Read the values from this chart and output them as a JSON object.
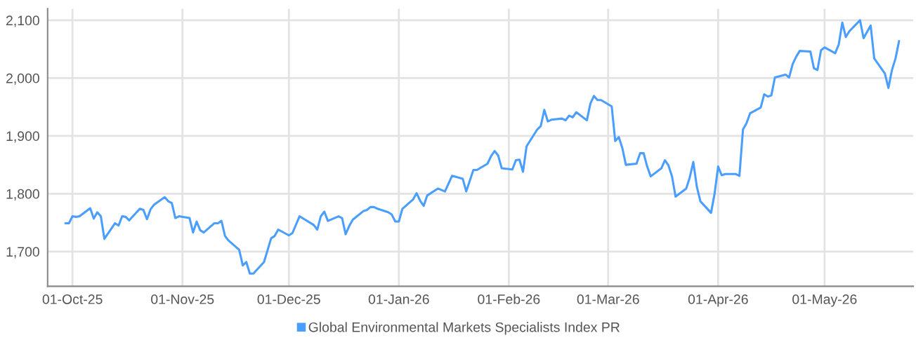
{
  "chart_data": {
    "type": "line",
    "xlim": [
      "2025-09-24",
      "2026-05-26"
    ],
    "xticks": [
      {
        "value": "2025-10-01",
        "label": "01-Oct-25"
      },
      {
        "value": "2025-11-01",
        "label": "01-Nov-25"
      },
      {
        "value": "2025-12-01",
        "label": "01-Dec-25"
      },
      {
        "value": "2026-01-01",
        "label": "01-Jan-26"
      },
      {
        "value": "2026-02-01",
        "label": "01-Feb-26"
      },
      {
        "value": "2026-03-01",
        "label": "01-Mar-26"
      },
      {
        "value": "2026-04-01",
        "label": "01-Apr-26"
      },
      {
        "value": "2026-05-01",
        "label": "01-May-26"
      }
    ],
    "ylim": [
      1640,
      2120
    ],
    "yticks": [
      {
        "value": 1700,
        "label": "1,700"
      },
      {
        "value": 1800,
        "label": "1,800"
      },
      {
        "value": 1900,
        "label": "1,900"
      },
      {
        "value": 2000,
        "label": "2,000"
      },
      {
        "value": 2100,
        "label": "2,100"
      }
    ],
    "grid": true,
    "legend": "bottom",
    "marker": "none",
    "line_style": "solid",
    "series": [
      {
        "name": "Global Environmental Markets Specialists Index PR",
        "color": "#4a9eff",
        "x": [
          "2025-09-29",
          "2025-09-30",
          "2025-10-01",
          "2025-10-02",
          "2025-10-03",
          "2025-10-06",
          "2025-10-07",
          "2025-10-08",
          "2025-10-09",
          "2025-10-10",
          "2025-10-13",
          "2025-10-14",
          "2025-10-15",
          "2025-10-16",
          "2025-10-17",
          "2025-10-20",
          "2025-10-21",
          "2025-10-22",
          "2025-10-23",
          "2025-10-24",
          "2025-10-27",
          "2025-10-28",
          "2025-10-29",
          "2025-10-30",
          "2025-10-31",
          "2025-11-03",
          "2025-11-04",
          "2025-11-05",
          "2025-11-06",
          "2025-11-07",
          "2025-11-10",
          "2025-11-11",
          "2025-11-12",
          "2025-11-13",
          "2025-11-14",
          "2025-11-17",
          "2025-11-18",
          "2025-11-19",
          "2025-11-20",
          "2025-11-21",
          "2025-11-24",
          "2025-11-26",
          "2025-11-27",
          "2025-11-28",
          "2025-12-01",
          "2025-12-02",
          "2025-12-04",
          "2025-12-08",
          "2025-12-09",
          "2025-12-10",
          "2025-12-11",
          "2025-12-12",
          "2025-12-15",
          "2025-12-16",
          "2025-12-17",
          "2025-12-18",
          "2025-12-19",
          "2025-12-22",
          "2025-12-23",
          "2025-12-24",
          "2025-12-25",
          "2025-12-26",
          "2025-12-29",
          "2025-12-30",
          "2025-12-31",
          "2026-01-01",
          "2026-01-02",
          "2026-01-05",
          "2026-01-06",
          "2026-01-07",
          "2026-01-08",
          "2026-01-09",
          "2026-01-12",
          "2026-01-14",
          "2026-01-16",
          "2026-01-19",
          "2026-01-20",
          "2026-01-22",
          "2026-01-23",
          "2026-01-26",
          "2026-01-27",
          "2026-01-28",
          "2026-01-29",
          "2026-01-30",
          "2026-02-02",
          "2026-02-03",
          "2026-02-04",
          "2026-02-05",
          "2026-02-06",
          "2026-02-09",
          "2026-02-10",
          "2026-02-11",
          "2026-02-12",
          "2026-02-13",
          "2026-02-16",
          "2026-02-17",
          "2026-02-18",
          "2026-02-19",
          "2026-02-20",
          "2026-02-23",
          "2026-02-24",
          "2026-02-25",
          "2026-02-26",
          "2026-02-27",
          "2026-03-02",
          "2026-03-03",
          "2026-03-04",
          "2026-03-05",
          "2026-03-06",
          "2026-03-09",
          "2026-03-10",
          "2026-03-11",
          "2026-03-12",
          "2026-03-13",
          "2026-03-16",
          "2026-03-17",
          "2026-03-18",
          "2026-03-19",
          "2026-03-20",
          "2026-03-23",
          "2026-03-24",
          "2026-03-25",
          "2026-03-26",
          "2026-03-27",
          "2026-03-30",
          "2026-03-31",
          "2026-04-01",
          "2026-04-02",
          "2026-04-03",
          "2026-04-06",
          "2026-04-07",
          "2026-04-08",
          "2026-04-09",
          "2026-04-10",
          "2026-04-13",
          "2026-04-14",
          "2026-04-15",
          "2026-04-16",
          "2026-04-17",
          "2026-04-20",
          "2026-04-21",
          "2026-04-22",
          "2026-04-23",
          "2026-04-24",
          "2026-04-27",
          "2026-04-28",
          "2026-04-29",
          "2026-04-30",
          "2026-05-01",
          "2026-05-04",
          "2026-05-05",
          "2026-05-06",
          "2026-05-07",
          "2026-05-08",
          "2026-05-11",
          "2026-05-12",
          "2026-05-14",
          "2026-05-15",
          "2026-05-18",
          "2026-05-19",
          "2026-05-20",
          "2026-05-21",
          "2026-05-22"
        ],
        "values": [
          1749,
          1749,
          1761,
          1760,
          1761,
          1775,
          1757,
          1768,
          1761,
          1722,
          1749,
          1745,
          1761,
          1760,
          1754,
          1774,
          1772,
          1756,
          1773,
          1781,
          1794,
          1787,
          1784,
          1758,
          1761,
          1758,
          1733,
          1752,
          1737,
          1733,
          1749,
          1749,
          1753,
          1727,
          1719,
          1703,
          1676,
          1682,
          1662,
          1662,
          1682,
          1723,
          1727,
          1738,
          1728,
          1732,
          1761,
          1746,
          1738,
          1761,
          1769,
          1753,
          1761,
          1758,
          1730,
          1744,
          1755,
          1770,
          1772,
          1777,
          1777,
          1774,
          1768,
          1764,
          1752,
          1752,
          1774,
          1790,
          1801,
          1788,
          1779,
          1797,
          1809,
          1804,
          1831,
          1826,
          1804,
          1841,
          1841,
          1852,
          1865,
          1874,
          1866,
          1844,
          1842,
          1858,
          1859,
          1838,
          1882,
          1911,
          1917,
          1945,
          1925,
          1928,
          1930,
          1927,
          1935,
          1932,
          1941,
          1927,
          1956,
          1969,
          1962,
          1962,
          1951,
          1891,
          1898,
          1879,
          1850,
          1852,
          1870,
          1870,
          1847,
          1830,
          1844,
          1858,
          1849,
          1830,
          1795,
          1809,
          1828,
          1855,
          1812,
          1787,
          1767,
          1800,
          1847,
          1832,
          1834,
          1834,
          1831,
          1911,
          1922,
          1939,
          1949,
          1972,
          1968,
          1970,
          2001,
          2006,
          2001,
          2024,
          2037,
          2047,
          2046,
          2017,
          2014,
          2048,
          2053,
          2043,
          2058,
          2096,
          2071,
          2081,
          2100,
          2069,
          2091,
          2034,
          2008,
          1983,
          2014,
          2034,
          2064
        ]
      }
    ]
  }
}
